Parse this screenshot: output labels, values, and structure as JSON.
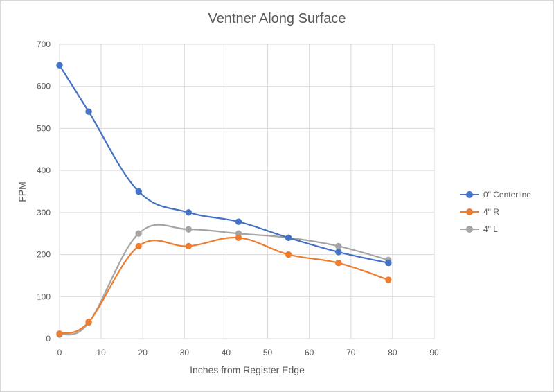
{
  "chart_data": {
    "type": "line",
    "title": "Ventner Along Surface",
    "xlabel": "Inches from Register Edge",
    "ylabel": "FPM",
    "xlim": [
      0,
      90
    ],
    "ylim": [
      0,
      700
    ],
    "xticks": [
      "0",
      "10",
      "20",
      "30",
      "40",
      "50",
      "60",
      "70",
      "80",
      "90"
    ],
    "yticks": [
      "0",
      "100",
      "200",
      "300",
      "400",
      "500",
      "600",
      "700"
    ],
    "grid": true,
    "smoothed": true,
    "legend_position": "right",
    "series": [
      {
        "name": "0\" Centerline",
        "color": "#4472c4",
        "x": [
          0,
          7,
          19,
          31,
          43,
          55,
          67,
          79
        ],
        "y": [
          650,
          540,
          350,
          300,
          278,
          240,
          206,
          180
        ]
      },
      {
        "name": "4\" R",
        "color": "#ed7d31",
        "x": [
          0,
          7,
          19,
          31,
          43,
          55,
          67,
          79
        ],
        "y": [
          12,
          40,
          220,
          220,
          240,
          200,
          180,
          140
        ]
      },
      {
        "name": "4\" L",
        "color": "#a5a5a5",
        "x": [
          0,
          7,
          19,
          31,
          43,
          55,
          67,
          79
        ],
        "y": [
          10,
          38,
          250,
          260,
          250,
          240,
          220,
          187
        ]
      }
    ]
  }
}
